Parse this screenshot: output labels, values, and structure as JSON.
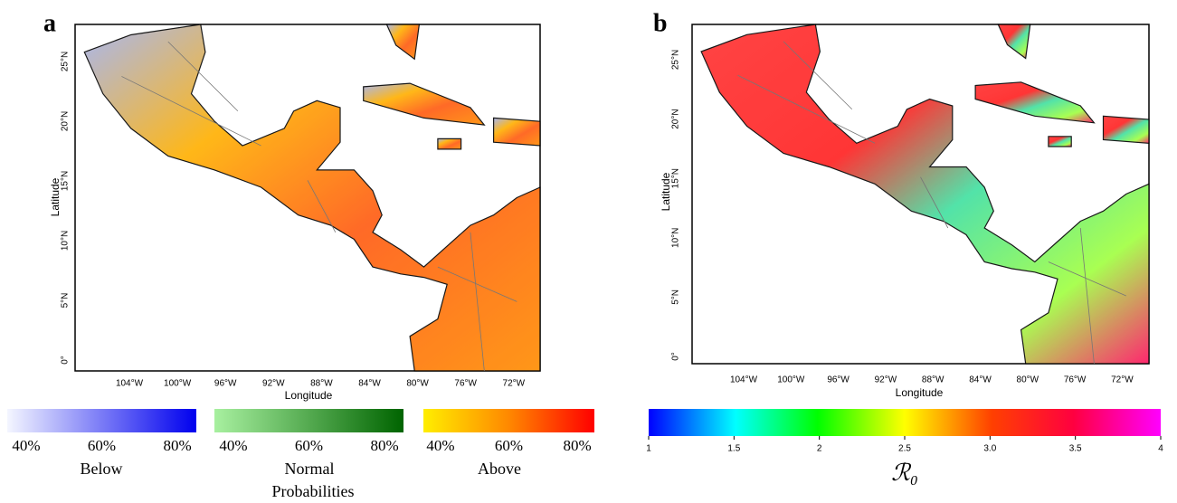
{
  "panels": [
    {
      "label": "a",
      "x_axis_label": "Longitude",
      "y_axis_label": "Latitude",
      "xticks": [
        "104°W",
        "100°W",
        "96°W",
        "92°W",
        "88°W",
        "84°W",
        "80°W",
        "76°W",
        "72°W"
      ],
      "yticks": [
        "0°",
        "5°N",
        "10°N",
        "15°N",
        "20°N",
        "25°N"
      ],
      "legends": [
        {
          "name": "Below",
          "ticks": [
            "40%",
            "60%",
            "80%"
          ]
        },
        {
          "name": "Normal",
          "ticks": [
            "40%",
            "60%",
            "80%"
          ]
        },
        {
          "name": "Above",
          "ticks": [
            "40%",
            "60%",
            "80%"
          ]
        }
      ],
      "legend_title": "Probabilities"
    },
    {
      "label": "b",
      "x_axis_label": "Longitude",
      "y_axis_label": "Latitude",
      "xticks": [
        "104°W",
        "100°W",
        "96°W",
        "92°W",
        "88°W",
        "84°W",
        "80°W",
        "76°W",
        "72°W"
      ],
      "yticks": [
        "0°",
        "5°N",
        "10°N",
        "15°N",
        "20°N",
        "25°N"
      ],
      "colorbar_ticks": [
        1,
        1.5,
        2,
        2.5,
        {
          "value": 3,
          "label": "3.0"
        },
        3.5,
        4
      ],
      "colorbar_label": "ℛ₀"
    }
  ]
}
